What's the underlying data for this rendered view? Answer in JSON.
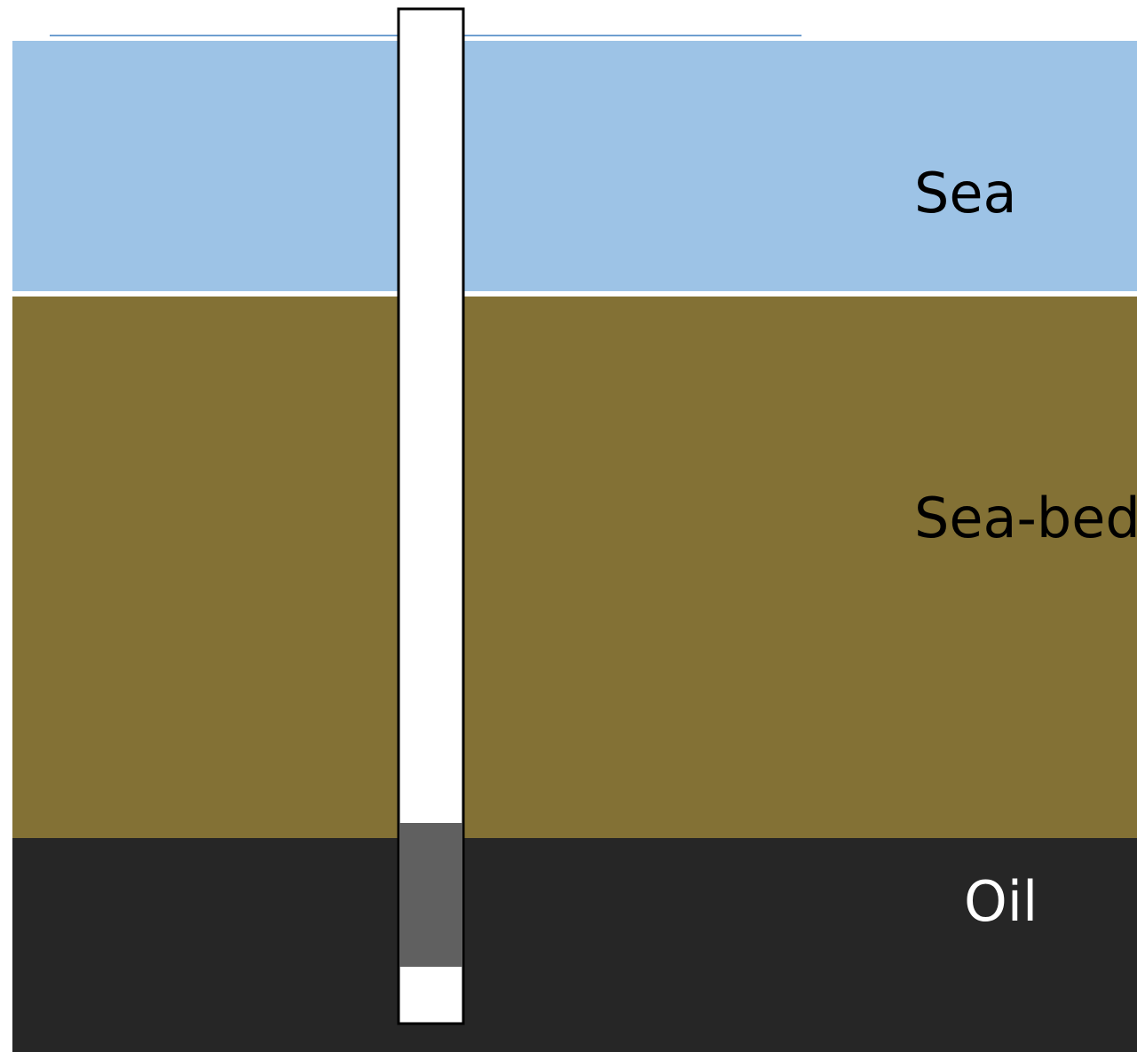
{
  "layers": [
    {
      "label": "Sea"
    },
    {
      "label": "Sea-bed"
    },
    {
      "label": "Oil"
    }
  ]
}
